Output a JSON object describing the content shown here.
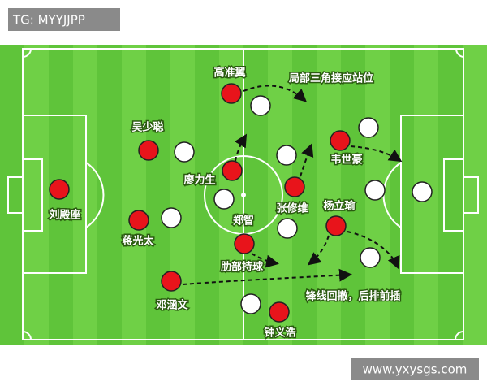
{
  "watermark": "TG: MYYJJPP",
  "site": "www.yxysgs.com",
  "players": [
    {
      "label": "高准翼"
    },
    {
      "label": "吴少聪"
    },
    {
      "label": "廖力生"
    },
    {
      "label": "刘殿座"
    },
    {
      "label": "郑智"
    },
    {
      "label": "张修维"
    },
    {
      "label": "韦世豪"
    },
    {
      "label": "杨立瑜"
    },
    {
      "label": "蒋光太"
    },
    {
      "label": "邓涵文"
    },
    {
      "label": "钟义浩"
    }
  ],
  "annotations": [
    {
      "text": "局部三角接应站位"
    },
    {
      "text": "肋部持球"
    },
    {
      "text": "锋线回撤，后排前插"
    }
  ]
}
